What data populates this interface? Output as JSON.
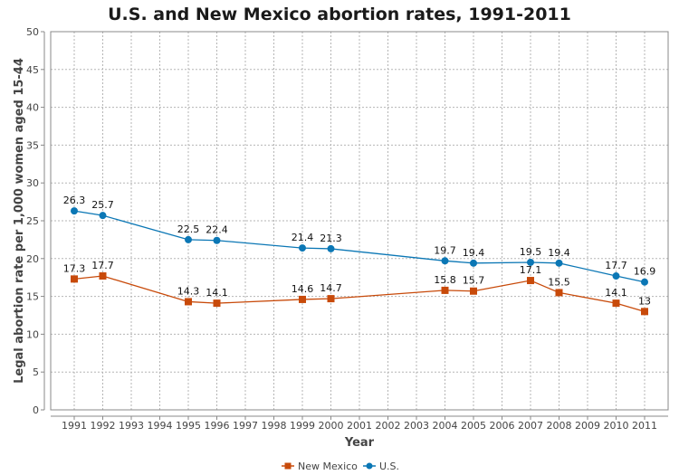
{
  "chart_data": {
    "type": "line",
    "title": "U.S. and New Mexico abortion rates, 1991-2011",
    "xlabel": "Year",
    "ylabel": "Legal abortion rate per 1,000 women aged 15-44",
    "x_ticks": [
      "1991",
      "1992",
      "1993",
      "1994",
      "1995",
      "1996",
      "1997",
      "1998",
      "1999",
      "2000",
      "2001",
      "2002",
      "2003",
      "2004",
      "2005",
      "2006",
      "2007",
      "2008",
      "2009",
      "2010",
      "2011"
    ],
    "y_ticks": [
      0,
      5,
      10,
      15,
      20,
      25,
      30,
      35,
      40,
      45,
      50
    ],
    "xlim": [
      1991,
      2011
    ],
    "ylim": [
      0,
      50
    ],
    "grid": true,
    "legend_position": "bottom-center",
    "series": [
      {
        "name": "New Mexico",
        "color": "#c84a0a",
        "marker": "square",
        "x": [
          1991,
          1992,
          1995,
          1996,
          1999,
          2000,
          2004,
          2005,
          2007,
          2008,
          2010,
          2011
        ],
        "values": [
          17.3,
          17.7,
          14.3,
          14.1,
          14.6,
          14.7,
          15.8,
          15.7,
          17.1,
          15.5,
          14.1,
          13
        ],
        "labels": [
          "17.3",
          "17.7",
          "14.3",
          "14.1",
          "14.6",
          "14.7",
          "15.8",
          "15.7",
          "17.1",
          "15.5",
          "14.1",
          "13"
        ]
      },
      {
        "name": "U.S.",
        "color": "#0b77b5",
        "marker": "circle",
        "x": [
          1991,
          1992,
          1995,
          1996,
          1999,
          2000,
          2004,
          2005,
          2007,
          2008,
          2010,
          2011
        ],
        "values": [
          26.3,
          25.7,
          22.5,
          22.4,
          21.4,
          21.3,
          19.7,
          19.4,
          19.5,
          19.4,
          17.7,
          16.9
        ],
        "labels": [
          "26.3",
          "25.7",
          "22.5",
          "22.4",
          "21.4",
          "21.3",
          "19.7",
          "19.4",
          "19.5",
          "19.4",
          "17.7",
          "16.9"
        ]
      }
    ]
  }
}
